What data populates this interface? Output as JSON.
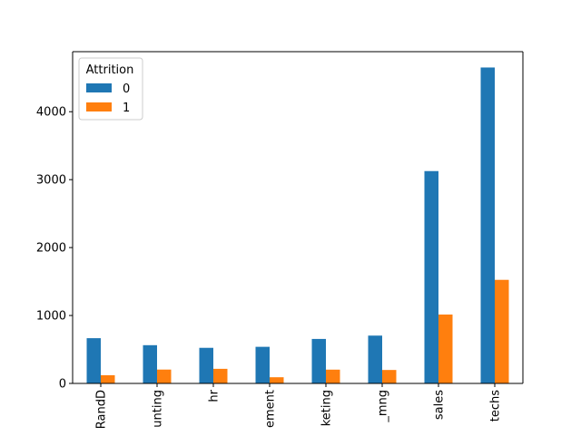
{
  "chart_data": {
    "type": "bar",
    "categories": [
      "RandD",
      "accounting",
      "hr",
      "management",
      "marketing",
      "product_mng",
      "sales",
      "techs"
    ],
    "visible_category_labels": [
      "RandD",
      "unting",
      "hr",
      "ement",
      "keting",
      "_mng",
      "sales",
      "techs"
    ],
    "series": [
      {
        "name": "0",
        "color": "#1f77b4",
        "values": [
          666,
          563,
          524,
          539,
          655,
          704,
          3126,
          4651
        ]
      },
      {
        "name": "1",
        "color": "#ff7f0e",
        "values": [
          121,
          204,
          215,
          91,
          203,
          198,
          1014,
          1525
        ]
      }
    ],
    "legend_title": "Attrition",
    "legend_position": "top-left",
    "xlabel": "",
    "ylabel": "",
    "ylim": [
      0,
      4884
    ],
    "yticks": [
      0,
      1000,
      2000,
      3000,
      4000
    ],
    "grid": false
  }
}
